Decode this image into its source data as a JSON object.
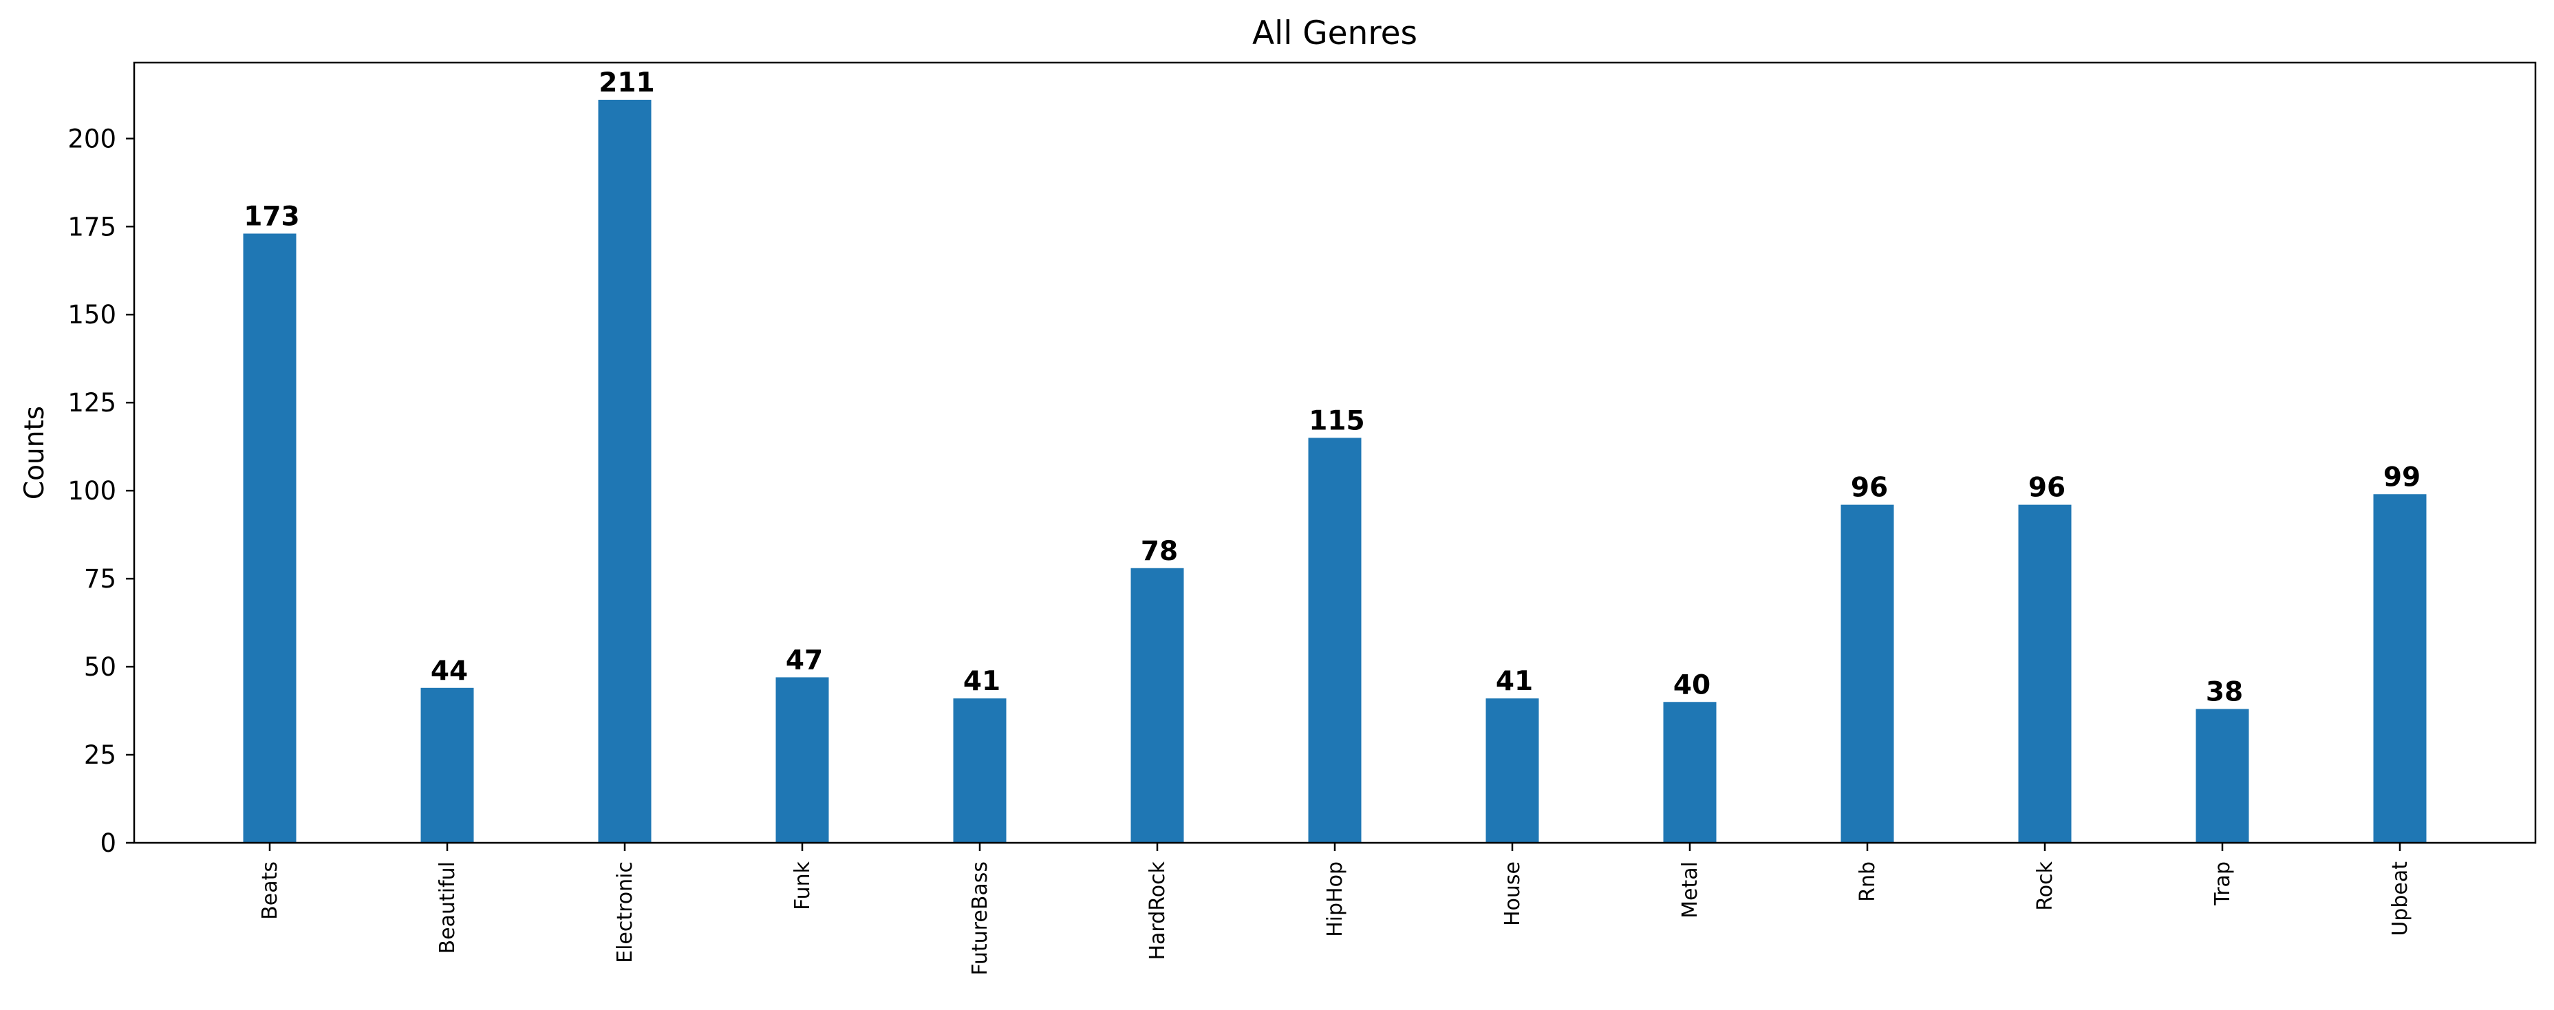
{
  "chart_data": {
    "type": "bar",
    "title": "All Genres",
    "xlabel": "",
    "ylabel": "Counts",
    "categories": [
      "Beats",
      "Beautiful",
      "Electronic",
      "Funk",
      "FutureBass",
      "HardRock",
      "HipHop",
      "House",
      "Metal",
      "Rnb",
      "Rock",
      "Trap",
      "Upbeat"
    ],
    "values": [
      173,
      44,
      211,
      47,
      41,
      78,
      115,
      41,
      40,
      96,
      96,
      38,
      99
    ],
    "data_labels": [
      "173",
      "44",
      "211",
      "47",
      "41",
      "78",
      "115",
      "41",
      "40",
      "96",
      "96",
      "38",
      "99"
    ],
    "yticks": [
      0,
      25,
      50,
      75,
      100,
      125,
      150,
      175,
      200
    ],
    "ytick_labels": [
      "0",
      "25",
      "50",
      "75",
      "100",
      "125",
      "150",
      "175",
      "200"
    ],
    "ylim": [
      0,
      221.55
    ],
    "grid": false,
    "legend": "none",
    "bar_color": "#1f77b4",
    "x_tick_rotation": "vertical"
  }
}
